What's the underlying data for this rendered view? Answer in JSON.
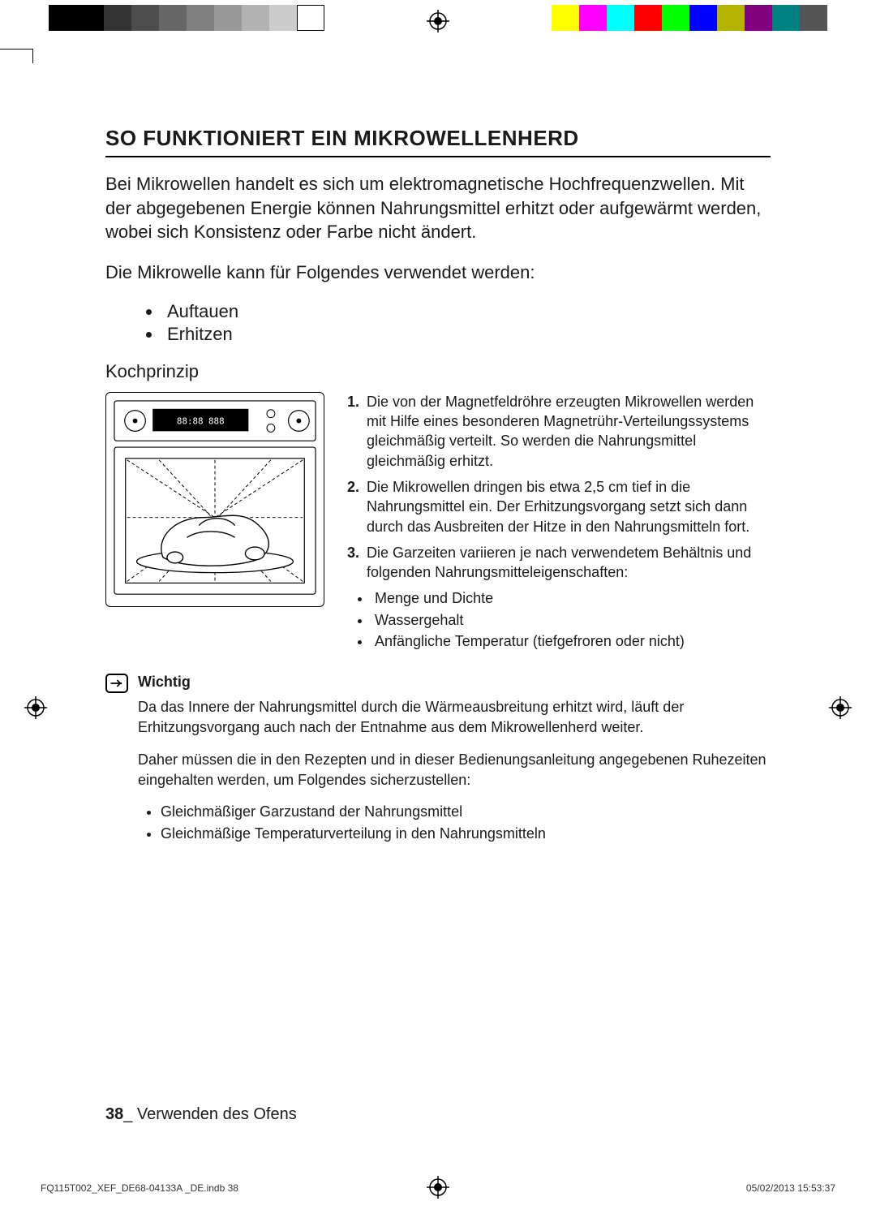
{
  "color_bar": {
    "left_swatches": [
      "#000000",
      "#000000",
      "#333333",
      "#4d4d4d",
      "#666666",
      "#808080",
      "#999999",
      "#b3b3b3",
      "#cccccc",
      "#ffffff"
    ],
    "right_swatches": [
      "#ffff00",
      "#ff00ff",
      "#00ffff",
      "#ff0000",
      "#00ff00",
      "#0000ff",
      "#b3b300",
      "#800080",
      "#008080",
      "#555555"
    ]
  },
  "section_title": "SO FUNKTIONIERT EIN MIKROWELLENHERD",
  "intro_p1": "Bei Mikrowellen handelt es sich um elektromagnetische Hochfrequenzwellen. Mit der abgegebenen Energie können Nahrungsmittel erhitzt oder aufgewärmt werden, wobei sich Konsistenz oder Farbe nicht ändert.",
  "intro_p2": "Die Mikrowelle kann für Folgendes verwendet werden:",
  "use_list": [
    "Auftauen",
    "Erhitzen"
  ],
  "subhead": "Kochprinzip",
  "principle": [
    "Die von der Magnetfeldröhre erzeugten Mikrowellen werden mit Hilfe eines besonderen Magnetrühr-Verteilungssystems gleichmäßig verteilt. So werden die Nahrungsmittel gleichmäßig erhitzt.",
    "Die Mikrowellen dringen bis etwa 2,5 cm tief in die Nahrungsmittel ein. Der Erhitzungsvorgang setzt sich dann durch das Ausbreiten der Hitze in den Nahrungsmitteln fort.",
    "Die Garzeiten variieren je nach verwendetem Behältnis und folgenden Nahrungsmitteleigenschaften:"
  ],
  "principle_sub": [
    "Menge und Dichte",
    "Wassergehalt",
    "Anfängliche Temperatur (tiefgefroren oder nicht)"
  ],
  "note": {
    "title": "Wichtig",
    "p1": "Da das Innere der Nahrungsmittel durch die Wärmeausbreitung erhitzt wird, läuft der Erhitzungsvorgang auch nach der Entnahme aus dem Mikrowellenherd weiter.",
    "p2": "Daher müssen die in den Rezepten und in dieser Bedienungsanleitung angegebenen Ruhezeiten eingehalten werden, um Folgendes sicherzustellen:",
    "list": [
      "Gleichmäßiger Garzustand der Nahrungsmittel",
      "Gleichmäßige Temperaturverteilung in den Nahrungsmitteln"
    ]
  },
  "footer": {
    "page_num": "38",
    "page_label": "_ Verwenden des Ofens"
  },
  "print_meta": {
    "file": "FQ115T002_XEF_DE68-04133A _DE.indb   38",
    "timestamp": "05/02/2013   15:53:37"
  },
  "oven_svg": {
    "stroke": "#000000",
    "fill": "#ffffff",
    "tray_fill": "#ffffff"
  }
}
